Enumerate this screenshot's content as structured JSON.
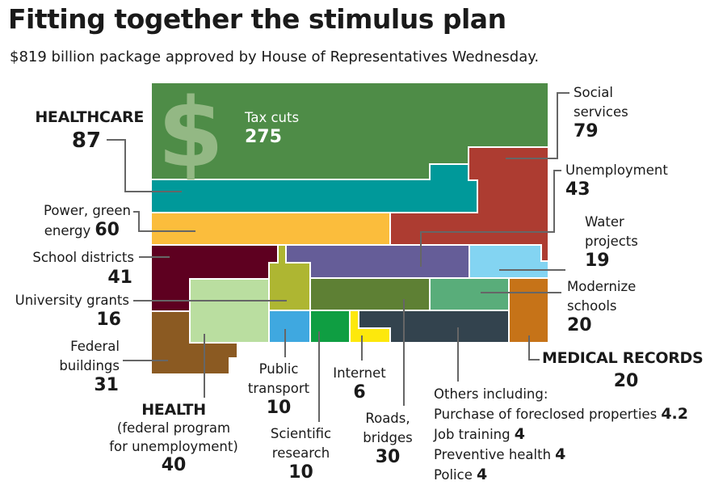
{
  "title": "Fitting together the stimulus plan",
  "subtitle": "$819 billion package approved by House of Representatives Wednesday.",
  "icon": "dollar-sign-icon",
  "segments": {
    "tax_cuts": {
      "label": "Tax cuts",
      "value": "275",
      "color": "#4e8c47"
    },
    "healthcare": {
      "label": "HEALTHCARE",
      "value": "87",
      "color": "#00999a"
    },
    "social_services": {
      "label": [
        "Social",
        "services"
      ],
      "value": "79",
      "color": "#ad3c31"
    },
    "unemployment": {
      "label": "Unemployment",
      "value": "43",
      "color": "#655d98"
    },
    "power_green_energy": {
      "label": [
        "Power, green",
        "energy"
      ],
      "value": "60",
      "color": "#fbbd3c"
    },
    "water_projects": {
      "label": [
        "Water",
        "projects"
      ],
      "value": "19",
      "color": "#83d4f2"
    },
    "school_districts": {
      "label": "School districts",
      "value": "41",
      "color": "#5e0020"
    },
    "university_grants": {
      "label": "University grants",
      "value": "16",
      "color": "#aeb632"
    },
    "modernize_schools": {
      "label": [
        "Modernize",
        "schools"
      ],
      "value": "20",
      "color": "#59ad7a"
    },
    "federal_buildings": {
      "label": [
        "Federal",
        "buildings"
      ],
      "value": "31",
      "color": "#8b5a22"
    },
    "health": {
      "label": "HEALTH",
      "sublabel": [
        "(federal program",
        "for unemployment)"
      ],
      "value": "40",
      "color": "#badea0"
    },
    "public_transport": {
      "label": [
        "Public",
        "transport"
      ],
      "value": "10",
      "color": "#3fa8e0"
    },
    "scientific_research": {
      "label": [
        "Scientific",
        "research"
      ],
      "value": "10",
      "color": "#0f9e42"
    },
    "internet": {
      "label": "Internet",
      "value": "6",
      "color": "#fde80c"
    },
    "roads_bridges": {
      "label": [
        "Roads,",
        "bridges"
      ],
      "value": "30",
      "color": "#5e8034"
    },
    "medical_records": {
      "label": "MEDICAL RECORDS",
      "value": "20",
      "color": "#c67318"
    },
    "others": {
      "label": "Others including:",
      "color": "#33434e",
      "items": [
        {
          "label": "Purchase of foreclosed properties",
          "value": "4.2"
        },
        {
          "label": "Job training",
          "value": "4"
        },
        {
          "label": "Preventive health",
          "value": "4"
        },
        {
          "label": "Police",
          "value": "4"
        }
      ]
    }
  }
}
